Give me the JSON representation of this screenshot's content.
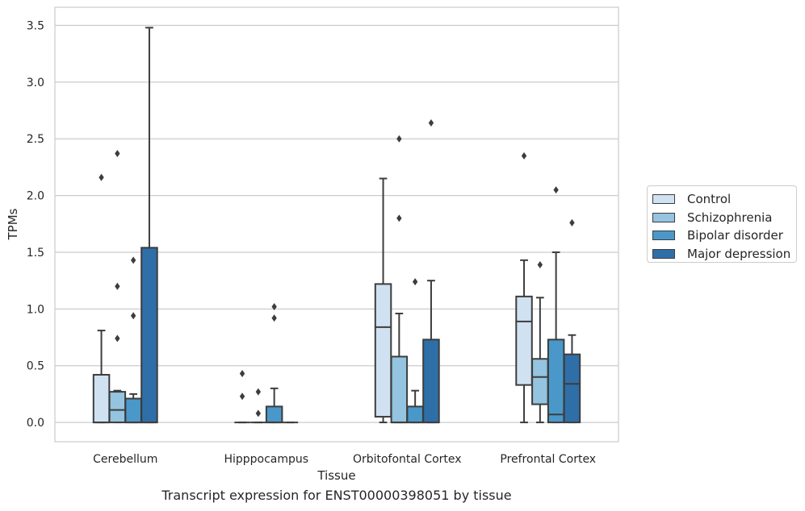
{
  "caption": "Transcript expression for ENST00000398051 by tissue",
  "chart_data": {
    "type": "box",
    "xlabel": "Tissue",
    "ylabel": "TPMs",
    "ylim": [
      -0.17,
      3.66
    ],
    "yticks": [
      "0.0",
      "0.5",
      "1.0",
      "1.5",
      "2.0",
      "2.5",
      "3.0",
      "3.5"
    ],
    "grid": true,
    "legend_position": "right",
    "categories": [
      "Cerebellum",
      "Hipppocampus",
      "Orbitofontal Cortex",
      "Prefrontal Cortex"
    ],
    "series": [
      {
        "name": "Control",
        "color": "#d0e1f2",
        "boxes": [
          {
            "min": 0,
            "q1": 0,
            "median": 0,
            "q3": 0.42,
            "max": 0.81,
            "outliers": [
              2.16
            ]
          },
          {
            "min": 0,
            "q1": 0,
            "median": 0,
            "q3": 0,
            "max": 0,
            "outliers": [
              0.43,
              0.23
            ]
          },
          {
            "min": 0,
            "q1": 0.05,
            "median": 0.84,
            "q3": 1.22,
            "max": 2.15,
            "outliers": []
          },
          {
            "min": 0,
            "q1": 0.33,
            "median": 0.89,
            "q3": 1.11,
            "max": 1.43,
            "outliers": [
              2.35
            ]
          }
        ]
      },
      {
        "name": "Schizophrenia",
        "color": "#94c4df",
        "boxes": [
          {
            "min": 0,
            "q1": 0,
            "median": 0.11,
            "q3": 0.27,
            "max": 0.28,
            "outliers": [
              2.37,
              1.2,
              0.74
            ]
          },
          {
            "min": 0,
            "q1": 0,
            "median": 0,
            "q3": 0,
            "max": 0,
            "outliers": [
              0.27,
              0.08
            ]
          },
          {
            "min": 0,
            "q1": 0,
            "median": 0,
            "q3": 0.58,
            "max": 0.96,
            "outliers": [
              2.5,
              1.8
            ]
          },
          {
            "min": 0,
            "q1": 0.16,
            "median": 0.4,
            "q3": 0.56,
            "max": 1.1,
            "outliers": [
              1.39
            ]
          }
        ]
      },
      {
        "name": "Bipolar disorder",
        "color": "#4a98c9",
        "boxes": [
          {
            "min": 0,
            "q1": 0,
            "median": 0,
            "q3": 0.21,
            "max": 0.25,
            "outliers": [
              1.43,
              0.94
            ]
          },
          {
            "min": 0,
            "q1": 0,
            "median": 0,
            "q3": 0.14,
            "max": 0.3,
            "outliers": [
              1.02,
              0.92
            ]
          },
          {
            "min": 0,
            "q1": 0,
            "median": 0,
            "q3": 0.14,
            "max": 0.28,
            "outliers": [
              1.24
            ]
          },
          {
            "min": 0,
            "q1": 0,
            "median": 0.07,
            "q3": 0.73,
            "max": 1.5,
            "outliers": [
              2.05
            ]
          }
        ]
      },
      {
        "name": "Major depression",
        "color": "#2e6fa8",
        "boxes": [
          {
            "min": 0,
            "q1": 0,
            "median": 0,
            "q3": 1.54,
            "max": 3.48,
            "outliers": []
          },
          {
            "min": 0,
            "q1": 0,
            "median": 0,
            "q3": 0,
            "max": 0,
            "outliers": []
          },
          {
            "min": 0,
            "q1": 0,
            "median": 0,
            "q3": 0.73,
            "max": 1.25,
            "outliers": [
              2.64
            ]
          },
          {
            "min": 0,
            "q1": 0,
            "median": 0.34,
            "q3": 0.6,
            "max": 0.77,
            "outliers": [
              1.76
            ]
          }
        ]
      }
    ]
  }
}
